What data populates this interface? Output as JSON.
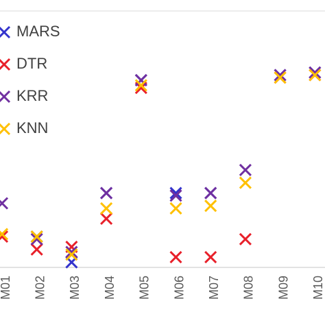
{
  "chart_data": {
    "type": "scatter",
    "title": "",
    "xlabel": "",
    "ylabel": "",
    "categories": [
      "M01",
      "M02",
      "M03",
      "M04",
      "M05",
      "M06",
      "M07",
      "M08",
      "M09",
      "M10"
    ],
    "ylim": [
      0,
      100
    ],
    "grid": false,
    "legend_position": "top-left",
    "marker": "x",
    "series": [
      {
        "name": "MARS",
        "color": "#3333CC",
        "values": [
          null,
          12,
          2,
          29,
          73,
          29,
          29,
          null,
          75,
          76
        ]
      },
      {
        "name": "DTR",
        "color": "#E8202A",
        "values": [
          12,
          7,
          8,
          19,
          70,
          4,
          4,
          11,
          74,
          75
        ]
      },
      {
        "name": "KRR",
        "color": "#7030A0",
        "values": [
          25,
          11,
          6,
          29,
          73,
          28,
          29,
          38,
          75,
          76
        ]
      },
      {
        "name": "KNN",
        "color": "#FFC000",
        "values": [
          13,
          12,
          5,
          23,
          71,
          23,
          24,
          33,
          74,
          75
        ]
      }
    ]
  }
}
